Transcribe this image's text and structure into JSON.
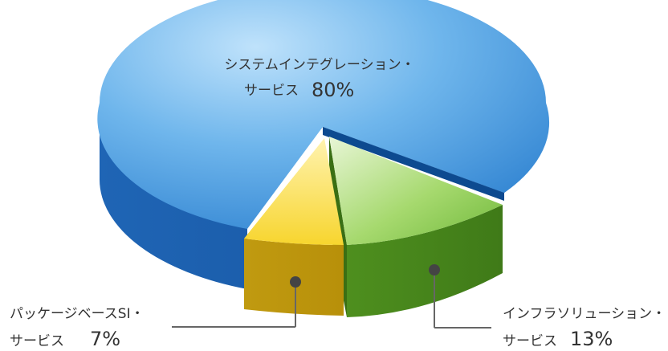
{
  "chart_data": {
    "type": "pie",
    "style": "3d-exploded",
    "slices": [
      {
        "label_line1": "システムインテグレーション・",
        "label_line2": "サービス",
        "value": 80,
        "value_label": "80%",
        "color": "#3d8fd8"
      },
      {
        "label_line1": "インフラソリューション・",
        "label_line2": "サービス",
        "value": 13,
        "value_label": "13%",
        "color": "#7cc243"
      },
      {
        "label_line1": "パッケージベースSI・",
        "label_line2": "サービス",
        "value": 7,
        "value_label": "7%",
        "color": "#f6d23a"
      }
    ]
  }
}
